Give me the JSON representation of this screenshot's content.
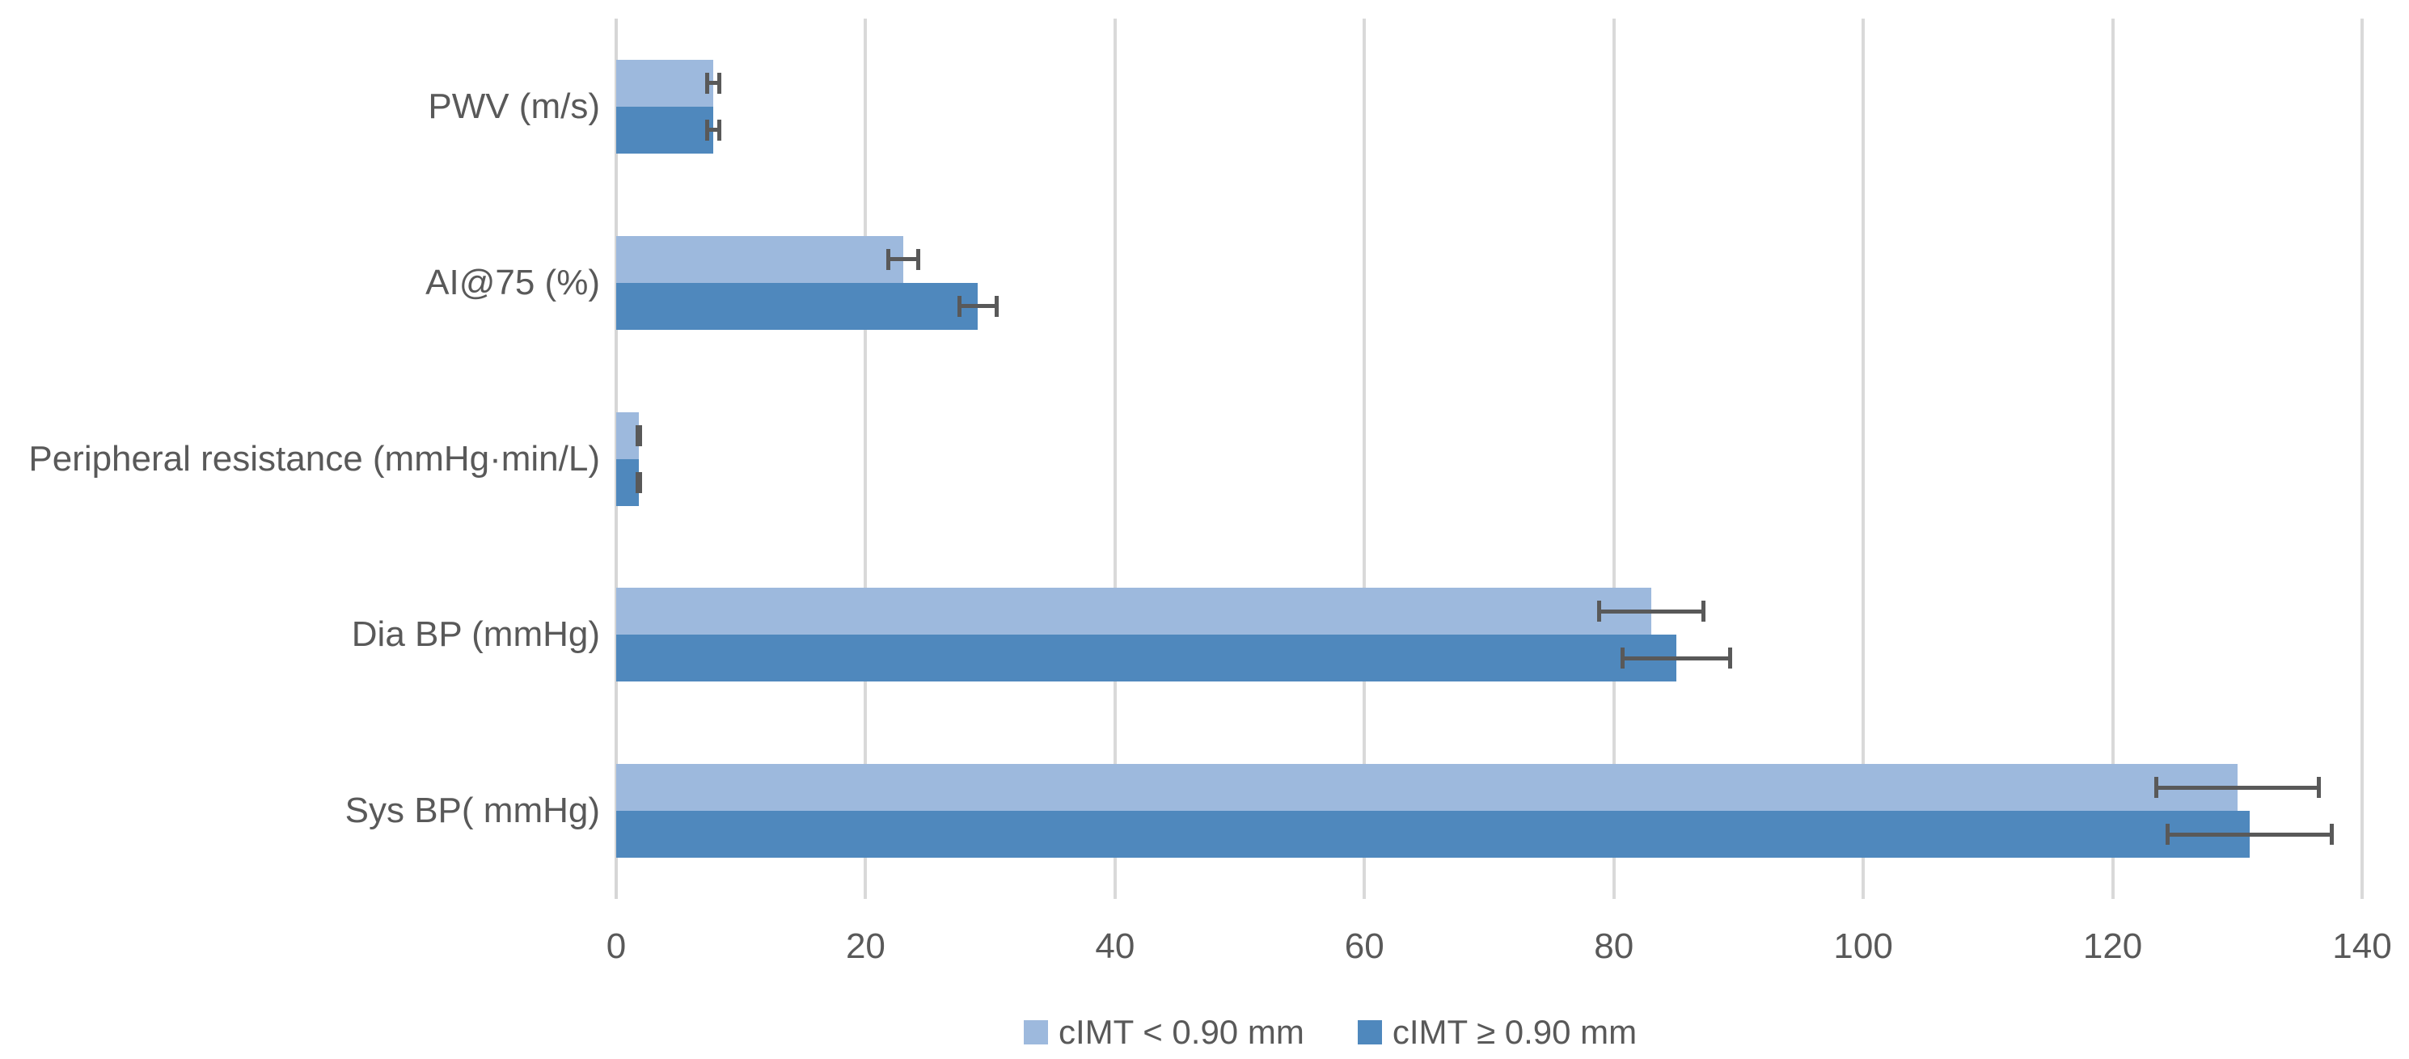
{
  "chart_data": {
    "type": "bar",
    "orientation": "horizontal",
    "title": "",
    "xlabel": "",
    "ylabel": "",
    "categories": [
      "PWV (m/s)",
      "AI@75 (%)",
      "Peripheral resistance (mmHg·min/L)",
      "Dia BP (mmHg)",
      "Sys BP( mmHg)"
    ],
    "series": [
      {
        "name": "cIMT < 0.90 mm",
        "color": "#9DB9DD",
        "values": [
          7.8,
          23,
          1.8,
          83,
          130
        ],
        "errors": [
          0.5,
          1.2,
          0.1,
          4.2,
          6.5
        ]
      },
      {
        "name": "cIMT ≥ 0.90 mm",
        "color": "#4F88BD",
        "values": [
          7.8,
          29,
          1.8,
          85,
          131
        ],
        "errors": [
          0.5,
          1.5,
          0.1,
          4.3,
          6.6
        ]
      }
    ],
    "x_ticks": [
      0,
      20,
      40,
      60,
      80,
      100,
      120,
      140
    ],
    "xlim": [
      0,
      140
    ],
    "grid": true,
    "legend_position": "bottom",
    "colors": {
      "grid": "#D9D9D9",
      "axis": "#D6D6D6",
      "text": "#595959",
      "error_bar": "#595959",
      "background": "#FFFFFF"
    }
  }
}
